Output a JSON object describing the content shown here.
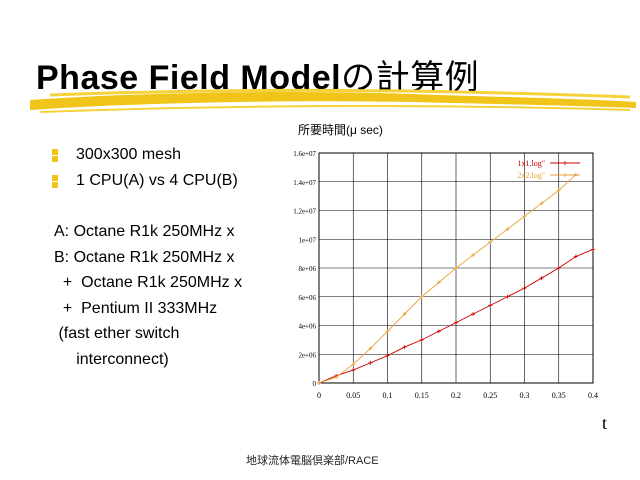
{
  "slide": {
    "title_latin": "Phase Field Model",
    "title_jp": "の計算例",
    "bullets": [
      "300x300 mesh",
      "1 CPU(A) vs 4 CPU(B)"
    ],
    "description": "A: Octane R1k 250MHz x\nB: Octane R1k 250MHz x\n  +  Octane R1k 250MHz x\n  +  Pentium II 333MHz\n (fast ether switch\n     interconnect)",
    "x_axis_letter": "t",
    "footer": "地球流体電脳倶楽部/RACE",
    "accent_color": "#f0c419"
  },
  "chart_data": {
    "type": "line",
    "title": "所要時間(μ sec)",
    "xlim": [
      0,
      0.4
    ],
    "ylim": [
      0,
      16000000
    ],
    "grid": true,
    "legend_position": "top-right",
    "x_ticks": [
      "0",
      "0.05",
      "0.1",
      "0.15",
      "0.2",
      "0.25",
      "0.3",
      "0.35",
      "0.4"
    ],
    "y_ticks": [
      "0",
      "2e+06",
      "4e+06",
      "6e+06",
      "8e+06",
      "1e+07",
      "1.2e+07",
      "1.4e+07",
      "1.6e+07"
    ],
    "series": [
      {
        "name": "1x1.log\"",
        "color": "#cc0000",
        "marker": "+",
        "x": [
          0,
          0.025,
          0.05,
          0.075,
          0.1,
          0.125,
          0.15,
          0.175,
          0.2,
          0.225,
          0.25,
          0.275,
          0.3,
          0.325,
          0.35,
          0.375,
          0.4
        ],
        "y": [
          0,
          500000,
          900000,
          1400000,
          1900000,
          2500000,
          3000000,
          3600000,
          4200000,
          4800000,
          5400000,
          6000000,
          6600000,
          7300000,
          8000000,
          8800000,
          9300000
        ]
      },
      {
        "name": "2x2.log\"",
        "color": "#e8a33a",
        "marker": "+",
        "x": [
          0,
          0.025,
          0.05,
          0.075,
          0.1,
          0.125,
          0.15,
          0.175,
          0.2,
          0.225,
          0.25,
          0.275,
          0.3,
          0.325,
          0.35,
          0.375
        ],
        "y": [
          0,
          400000,
          1300000,
          2400000,
          3600000,
          4800000,
          6000000,
          7000000,
          8000000,
          8900000,
          9800000,
          10700000,
          11600000,
          12500000,
          13400000,
          14500000
        ]
      }
    ]
  }
}
